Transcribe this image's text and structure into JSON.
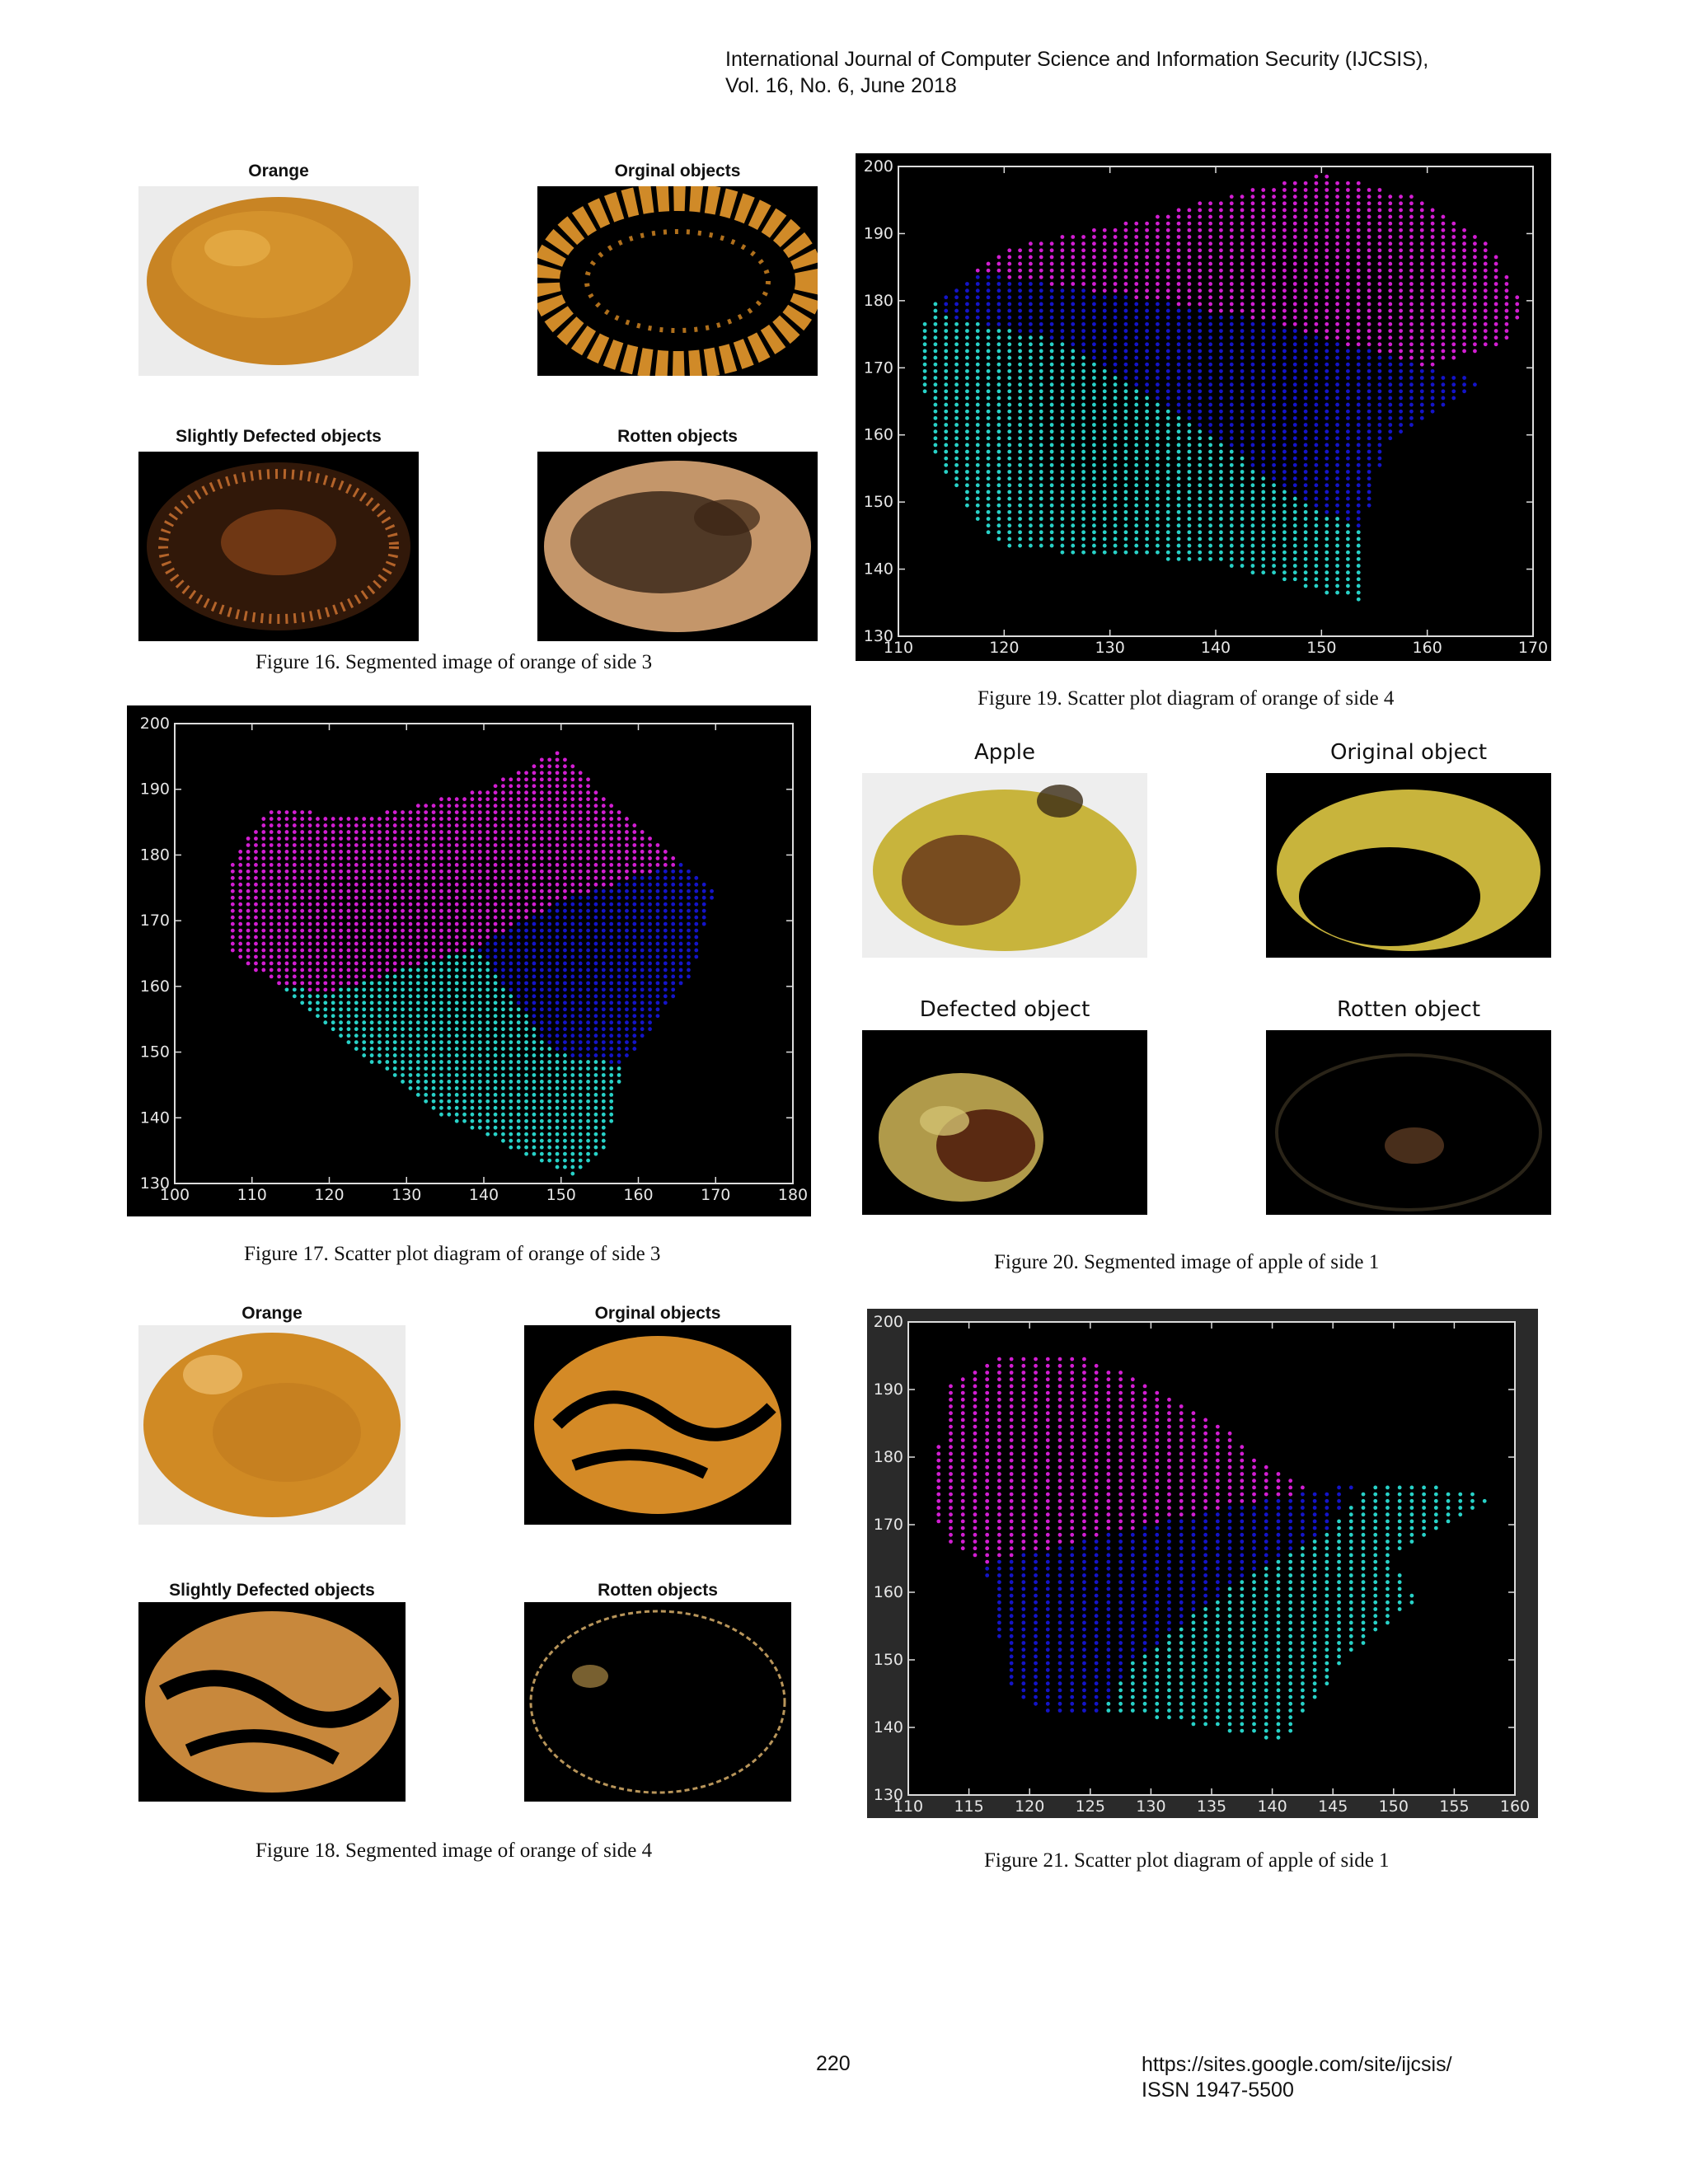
{
  "header": {
    "journal": "International Journal of Computer Science and Information Security (IJCSIS),",
    "volume": "Vol. 16, No. 6, June 2018"
  },
  "figures": {
    "fig16": {
      "caption": "Figure 16. Segmented image of orange of side 3",
      "panels": [
        "Orange",
        "Orginal objects",
        "Slightly Defected objects",
        "Rotten objects"
      ]
    },
    "fig17": {
      "caption": "Figure 17. Scatter plot diagram of orange of side 3"
    },
    "fig18": {
      "caption": "Figure 18. Segmented image of orange of side 4",
      "panels": [
        "Orange",
        "Orginal objects",
        "Slightly Defected objects",
        "Rotten objects"
      ]
    },
    "fig19": {
      "caption": "Figure 19. Scatter plot diagram of orange of side 4"
    },
    "fig20": {
      "caption": "Figure 20. Segmented image of apple of side 1",
      "panels": [
        "Apple",
        "Original object",
        "Defected object",
        "Rotten object"
      ]
    },
    "fig21": {
      "caption": "Figure 21. Scatter plot diagram of apple of side 1"
    }
  },
  "colors": {
    "cluster_a": "#d21ed2",
    "cluster_b": "#1414c8",
    "cluster_c": "#28d2c8",
    "plot_bg": "#000000",
    "orange": "#d28c28",
    "apple": "#c8b43c"
  },
  "chart_data": [
    {
      "id": "fig17",
      "type": "scatter",
      "xlim": [
        100,
        180
      ],
      "ylim": [
        130,
        200
      ],
      "xticks": [
        100,
        110,
        120,
        130,
        140,
        150,
        160,
        170,
        180
      ],
      "yticks": [
        130,
        140,
        150,
        160,
        170,
        180,
        190,
        200
      ],
      "series": [
        {
          "color": "#d21ed2",
          "region": [
            [
              107,
              178
            ],
            [
              112,
              187
            ],
            [
              125,
              186
            ],
            [
              140,
              190
            ],
            [
              150,
              196
            ],
            [
              158,
              186
            ],
            [
              166,
              179
            ],
            [
              150,
              173
            ],
            [
              139,
              166
            ],
            [
              120,
              159
            ],
            [
              114,
              160
            ],
            [
              107,
              165
            ]
          ]
        },
        {
          "color": "#1414c8",
          "region": [
            [
              139,
              166
            ],
            [
              150,
              173
            ],
            [
              166,
              179
            ],
            [
              170,
              175
            ],
            [
              167,
              162
            ],
            [
              158,
              148
            ],
            [
              149,
              150
            ]
          ]
        },
        {
          "color": "#28d2c8",
          "region": [
            [
              114,
              160
            ],
            [
              120,
              159
            ],
            [
              139,
              166
            ],
            [
              149,
              150
            ],
            [
              158,
              148
            ],
            [
              156,
              136
            ],
            [
              152,
              131
            ],
            [
              135,
              140
            ],
            [
              116,
              157
            ]
          ]
        }
      ]
    },
    {
      "id": "fig19",
      "type": "scatter",
      "xlim": [
        110,
        170
      ],
      "ylim": [
        130,
        200
      ],
      "xticks": [
        110,
        120,
        130,
        140,
        150,
        160,
        170
      ],
      "yticks": [
        130,
        140,
        150,
        160,
        170,
        180,
        190,
        200
      ],
      "series": [
        {
          "color": "#d21ed2",
          "region": [
            [
              115,
              181
            ],
            [
              120,
              188
            ],
            [
              130,
              191
            ],
            [
              142,
              196
            ],
            [
              150,
              199
            ],
            [
              160,
              195
            ],
            [
              166,
              188
            ],
            [
              169,
              180
            ],
            [
              168,
              174
            ],
            [
              160,
              170
            ],
            [
              145,
              177
            ],
            [
              130,
              181
            ],
            [
              118,
              184
            ]
          ]
        },
        {
          "color": "#1414c8",
          "region": [
            [
              114,
              181
            ],
            [
              118,
              184
            ],
            [
              130,
              181
            ],
            [
              145,
              177
            ],
            [
              160,
              170
            ],
            [
              166,
              168
            ],
            [
              160,
              162
            ],
            [
              156,
              158
            ],
            [
              154,
              146
            ],
            [
              148,
              150
            ],
            [
              138,
              162
            ],
            [
              125,
              174
            ],
            [
              114,
              178
            ]
          ]
        },
        {
          "color": "#28d2c8",
          "region": [
            [
              112,
              175
            ],
            [
              114,
              181
            ],
            [
              114,
              178
            ],
            [
              125,
              174
            ],
            [
              138,
              162
            ],
            [
              148,
              150
            ],
            [
              154,
              146
            ],
            [
              154,
              135
            ],
            [
              140,
              141
            ],
            [
              120,
              143
            ],
            [
              117,
              148
            ],
            [
              113,
              158
            ]
          ]
        }
      ]
    },
    {
      "id": "fig21",
      "type": "scatter",
      "xlim": [
        110,
        160
      ],
      "ylim": [
        130,
        200
      ],
      "xticks": [
        110,
        115,
        120,
        125,
        130,
        135,
        140,
        145,
        150,
        155,
        160
      ],
      "yticks": [
        130,
        140,
        150,
        160,
        170,
        180,
        190,
        200
      ],
      "series": [
        {
          "color": "#d21ed2",
          "region": [
            [
              113,
              190
            ],
            [
              118,
              195
            ],
            [
              124,
              195
            ],
            [
              130,
              191
            ],
            [
              135,
              186
            ],
            [
              140,
              178
            ],
            [
              144,
              175
            ],
            [
              140,
              174
            ],
            [
              125,
              168
            ],
            [
              116,
              164
            ],
            [
              113,
              168
            ],
            [
              112,
              173
            ]
          ]
        },
        {
          "color": "#1414c8",
          "region": [
            [
              116,
              164
            ],
            [
              125,
              168
            ],
            [
              140,
              174
            ],
            [
              147,
              176
            ],
            [
              145,
              170
            ],
            [
              136,
              160
            ],
            [
              128,
              149
            ],
            [
              126,
              142
            ],
            [
              121,
              142
            ],
            [
              118,
              147
            ],
            [
              117,
              160
            ]
          ]
        },
        {
          "color": "#28d2c8",
          "region": [
            [
              126,
              142
            ],
            [
              128,
              149
            ],
            [
              136,
              160
            ],
            [
              145,
              170
            ],
            [
              148,
              176
            ],
            [
              152,
              176
            ],
            [
              159,
              174
            ],
            [
              155,
              170
            ],
            [
              150,
              165
            ],
            [
              152,
              159
            ],
            [
              146,
              150
            ],
            [
              141,
              138
            ],
            [
              128,
              142
            ]
          ]
        }
      ]
    }
  ],
  "footer": {
    "page": "220",
    "url": "https://sites.google.com/site/ijcsis/",
    "issn": "ISSN 1947-5500"
  }
}
